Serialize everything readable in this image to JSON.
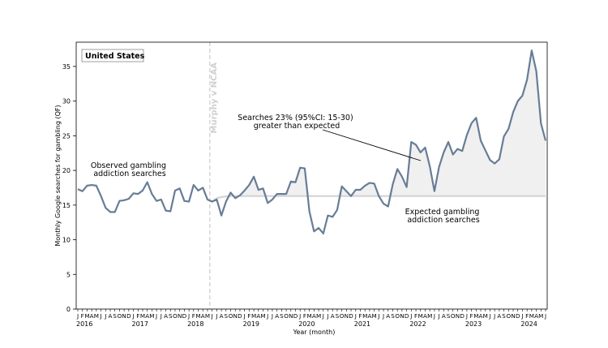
{
  "chart_data": {
    "type": "line",
    "title": "",
    "xlabel": "Year (month)",
    "ylabel": "Monthly Google searches for gambling (QF)",
    "ylim": [
      0,
      38.5
    ],
    "yticks": [
      0,
      5,
      10,
      15,
      20,
      25,
      30,
      35
    ],
    "month_letters": [
      "J",
      "F",
      "M",
      "A",
      "M",
      "J",
      "J",
      "A",
      "S",
      "O",
      "N",
      "D"
    ],
    "year_labels": [
      "2016",
      "2017",
      "2018",
      "2019",
      "2020",
      "2021",
      "2022",
      "2023",
      "2024"
    ],
    "grid": false,
    "country_label": "United States",
    "event": {
      "label": "Murphy v NCAA",
      "date": "2018-06"
    },
    "start": "2016-01",
    "end": "2024-06",
    "series": [
      {
        "name": "Observed gambling addiction searches",
        "color": "#677d96",
        "values": [
          17.3,
          17.0,
          17.8,
          17.9,
          17.8,
          16.3,
          14.6,
          14.0,
          14.0,
          15.6,
          15.7,
          15.9,
          16.7,
          16.6,
          17.1,
          18.3,
          16.6,
          15.6,
          15.8,
          14.2,
          14.1,
          17.1,
          17.4,
          15.6,
          15.5,
          17.9,
          17.1,
          17.5,
          15.8,
          15.5,
          15.8,
          13.5,
          15.5,
          16.8,
          16.0,
          16.4,
          17.1,
          17.9,
          19.1,
          17.2,
          17.4,
          15.3,
          15.8,
          16.6,
          16.6,
          16.6,
          18.4,
          18.3,
          20.4,
          20.3,
          14.1,
          11.2,
          11.7,
          10.9,
          13.5,
          13.3,
          14.3,
          17.7,
          17.0,
          16.3,
          17.2,
          17.2,
          17.8,
          18.2,
          18.1,
          16.3,
          15.2,
          14.8,
          18.0,
          20.2,
          19.1,
          17.6,
          24.1,
          23.7,
          22.6,
          23.3,
          20.6,
          17.0,
          20.5,
          22.6,
          24.1,
          22.3,
          23.1,
          22.8,
          25.1,
          26.8,
          27.6,
          24.3,
          22.9,
          21.5,
          21.0,
          21.6,
          24.9,
          26.0,
          28.4,
          30.0,
          30.8,
          33.1,
          37.3,
          34.3,
          26.8,
          24.3
        ]
      },
      {
        "name": "Expected gambling addiction searches",
        "color": "#d4d4d4",
        "start_index": 29,
        "values": [
          15.5,
          16.0,
          16.15,
          16.25,
          16.3,
          16.3,
          16.3,
          16.3
        ]
      }
    ],
    "annotations": [
      {
        "text": [
          "Observed gambling",
          "addiction searches"
        ]
      },
      {
        "text": [
          "Expected gambling",
          "addiction searches"
        ]
      },
      {
        "text": [
          "Searches 23% (95%CI: 15-30)",
          "greater than expected"
        ]
      }
    ],
    "shaded_region": "between observed and expected after Murphy v NCAA",
    "shade_color": "#f0f0f0"
  }
}
